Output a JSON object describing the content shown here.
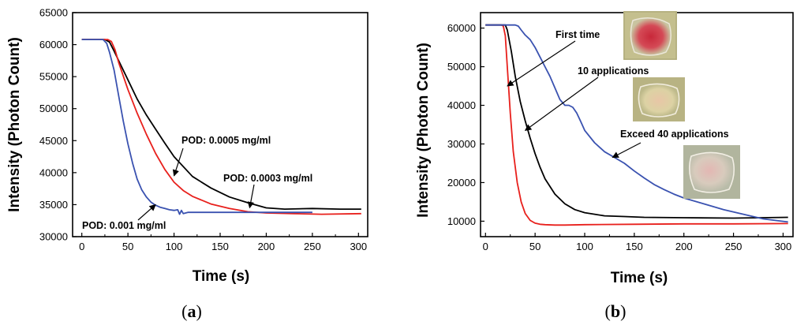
{
  "chart_data": [
    {
      "panel": "a",
      "type": "line",
      "xlabel": "Time (s)",
      "ylabel": "Intensity (Photon Count)",
      "xlim": [
        -10,
        310
      ],
      "ylim": [
        30000,
        65000
      ],
      "xticks": [
        0,
        50,
        100,
        150,
        200,
        250,
        300
      ],
      "yticks": [
        30000,
        35000,
        40000,
        45000,
        50000,
        55000,
        60000,
        65000
      ],
      "series": [
        {
          "name": "POD: 0.0005 mg/ml",
          "color": "#000000",
          "x": [
            0,
            25,
            30,
            35,
            40,
            50,
            60,
            70,
            80,
            90,
            100,
            120,
            140,
            160,
            180,
            200,
            220,
            250,
            280,
            303
          ],
          "y": [
            60800,
            60800,
            60400,
            59000,
            57500,
            54500,
            51500,
            49000,
            46800,
            44600,
            42500,
            39400,
            37600,
            36200,
            35300,
            34500,
            34300,
            34400,
            34300,
            34300
          ]
        },
        {
          "name": "POD: 0.0003 mg/ml",
          "color": "#e8201c",
          "x": [
            0,
            28,
            32,
            36,
            40,
            50,
            60,
            70,
            80,
            90,
            100,
            110,
            120,
            140,
            160,
            180,
            200,
            230,
            260,
            303
          ],
          "y": [
            60800,
            60800,
            60500,
            59200,
            57200,
            53000,
            49300,
            46000,
            43000,
            40500,
            38500,
            37200,
            36300,
            35100,
            34400,
            33900,
            33700,
            33600,
            33500,
            33600
          ]
        },
        {
          "name": "POD: 0.001 mg/ml",
          "color": "#3a52b0",
          "x": [
            0,
            23,
            27,
            30,
            35,
            40,
            45,
            50,
            55,
            60,
            65,
            70,
            75,
            80,
            85,
            90,
            95,
            100,
            104,
            106,
            108,
            110,
            115,
            130,
            160,
            200,
            250
          ],
          "y": [
            60800,
            60800,
            60200,
            58800,
            56000,
            52000,
            48000,
            44500,
            41500,
            39000,
            37300,
            36200,
            35400,
            34900,
            34600,
            34400,
            34200,
            34100,
            34200,
            33500,
            34100,
            33600,
            33800,
            33800,
            33800,
            33800,
            33800
          ]
        }
      ],
      "annotations": [
        {
          "text": "POD: 0.0005 mg/ml",
          "target_x": 100,
          "target_y": 39500
        },
        {
          "text": "POD: 0.0003 mg/ml",
          "target_x": 182,
          "target_y": 34500
        },
        {
          "text": "POD: 0.001 mg/ml",
          "target_x": 80,
          "target_y": 35000
        }
      ],
      "panel_label": {
        "open": "(",
        "letter": "a",
        "close": ")"
      }
    },
    {
      "panel": "b",
      "type": "line",
      "xlabel": "Time (s)",
      "ylabel": "Intensity (Photon Count)",
      "xlim": [
        -5,
        310
      ],
      "ylim": [
        6000,
        64000
      ],
      "xticks": [
        0,
        50,
        100,
        150,
        200,
        250,
        300
      ],
      "yticks": [
        10000,
        20000,
        30000,
        40000,
        50000,
        60000
      ],
      "series": [
        {
          "name": "First time",
          "color": "#e8201c",
          "x": [
            0,
            16,
            18,
            20,
            22,
            25,
            28,
            32,
            36,
            40,
            45,
            50,
            55,
            60,
            70,
            80,
            100,
            150,
            200,
            250,
            305
          ],
          "y": [
            60800,
            60800,
            60500,
            58000,
            50000,
            38000,
            28000,
            20000,
            15000,
            12000,
            10200,
            9500,
            9200,
            9100,
            9000,
            9000,
            9100,
            9200,
            9300,
            9300,
            9400
          ]
        },
        {
          "name": "10 applications",
          "color": "#000000",
          "x": [
            0,
            20,
            22,
            26,
            30,
            35,
            40,
            45,
            50,
            55,
            60,
            70,
            80,
            90,
            100,
            110,
            120,
            140,
            160,
            200,
            250,
            305
          ],
          "y": [
            60800,
            60800,
            59500,
            54000,
            47500,
            41000,
            36000,
            31500,
            27500,
            24000,
            21000,
            17000,
            14500,
            13000,
            12200,
            11800,
            11400,
            11200,
            11000,
            10900,
            10800,
            11000
          ]
        },
        {
          "name": "Exceed 40 applications",
          "color": "#3a52b0",
          "x": [
            0,
            30,
            33,
            36,
            40,
            45,
            50,
            55,
            60,
            65,
            70,
            75,
            80,
            84,
            88,
            92,
            96,
            100,
            110,
            120,
            130,
            140,
            150,
            160,
            170,
            180,
            190,
            200,
            220,
            240,
            260,
            280,
            305
          ],
          "y": [
            60800,
            60800,
            60500,
            59500,
            58200,
            57000,
            55000,
            52500,
            50000,
            47500,
            44500,
            41500,
            40000,
            40000,
            39500,
            38000,
            35800,
            33500,
            30300,
            28000,
            26500,
            25000,
            23000,
            21200,
            19500,
            18200,
            17000,
            16000,
            14500,
            13000,
            11800,
            10600,
            9800
          ]
        }
      ],
      "annotations": [
        {
          "text": "First time",
          "target_x": 22,
          "target_y": 45000
        },
        {
          "text": "10 applications",
          "target_x": 40,
          "target_y": 33500
        },
        {
          "text": "Exceed 40 applications",
          "target_x": 128,
          "target_y": 26500
        }
      ],
      "photos": [
        {
          "name": "photo-first-time",
          "label": "red circular spot"
        },
        {
          "name": "photo-10-applications",
          "label": "faded circular spot"
        },
        {
          "name": "photo-40-applications",
          "label": "faint circular spot"
        }
      ],
      "panel_label": {
        "open": "(",
        "letter": "b",
        "close": ")"
      }
    }
  ]
}
